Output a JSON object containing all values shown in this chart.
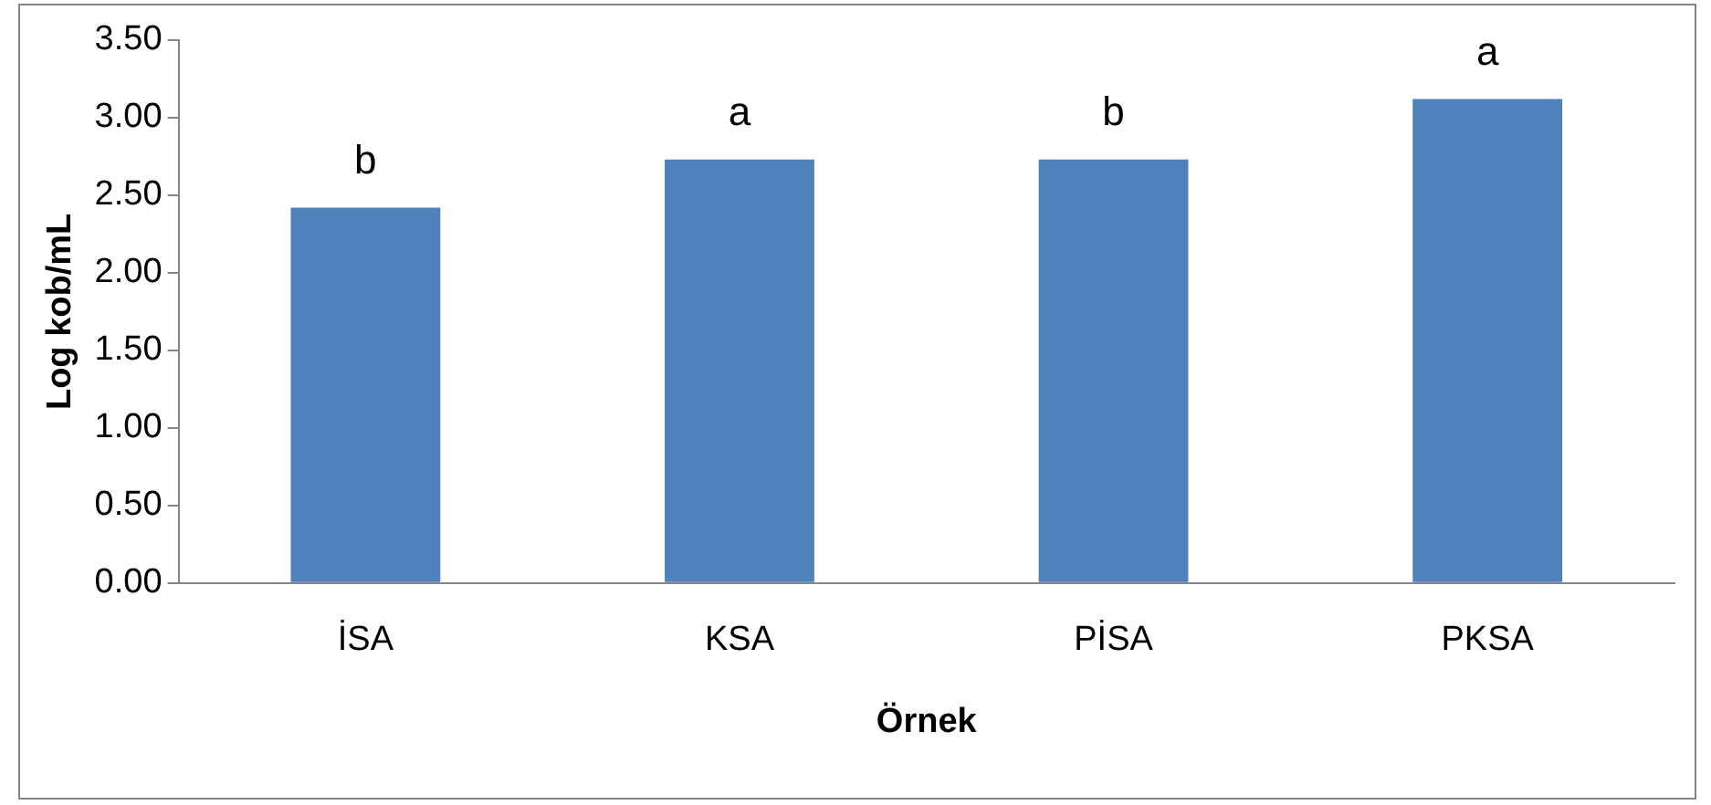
{
  "chart_data": {
    "type": "bar",
    "xlabel": "Örnek",
    "ylabel": "Log kob/mL",
    "categories": [
      "İSA",
      "KSA",
      "PİSA",
      "PKSA"
    ],
    "values": [
      2.42,
      2.73,
      2.73,
      3.12
    ],
    "color": "#4f81bd",
    "ylim": [
      0,
      3.5
    ],
    "yticks": [
      {
        "value": 0,
        "label": "0.00"
      },
      {
        "value": 0.5,
        "label": "0.50"
      },
      {
        "value": 1,
        "label": "1.00"
      },
      {
        "value": 1.5,
        "label": "1.50"
      },
      {
        "value": 2,
        "label": "2.00"
      },
      {
        "value": 2.5,
        "label": "2.50"
      },
      {
        "value": 3,
        "label": "3.00"
      },
      {
        "value": 3.5,
        "label": "3.50"
      }
    ],
    "grid": false,
    "legend": false,
    "annotations": [
      {
        "text": "b",
        "x": "İSA",
        "y": 2.42
      },
      {
        "text": "a",
        "x": "KSA",
        "y": 2.73
      },
      {
        "text": "b",
        "x": "PİSA",
        "y": 2.73
      },
      {
        "text": "a",
        "x": "PKSA",
        "y": 3.12
      }
    ]
  }
}
